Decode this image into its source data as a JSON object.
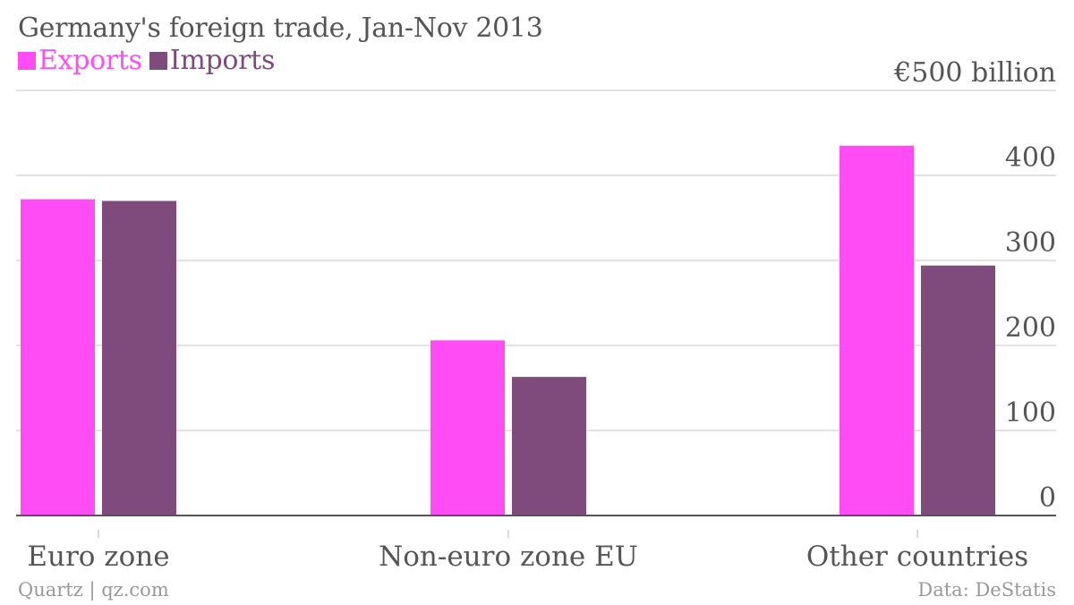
{
  "title": "Germany's foreign trade, Jan-Nov 2013",
  "footer": {
    "source_left": "Quartz | qz.com",
    "source_right": "Data: DeStatis"
  },
  "colors": {
    "exports": "#ff4cf5",
    "imports": "#7f4a7c",
    "grid": "#e2e2e2",
    "axis": "#555555",
    "text": "#555555"
  },
  "chart_data": {
    "type": "bar",
    "categories": [
      "Euro zone",
      "Non-euro zone EU",
      "Other countries"
    ],
    "series": [
      {
        "name": "Exports",
        "values": [
          372,
          206,
          435
        ]
      },
      {
        "name": "Imports",
        "values": [
          370,
          163,
          294
        ]
      }
    ],
    "ylim": [
      0,
      500
    ],
    "y_ticks": [
      "0",
      "100",
      "200",
      "300",
      "400",
      "€500 billion"
    ],
    "y_tick_values": [
      0,
      100,
      200,
      300,
      400,
      500
    ],
    "y_axis_position": "right",
    "legend_position": "top-left",
    "grid": true
  }
}
